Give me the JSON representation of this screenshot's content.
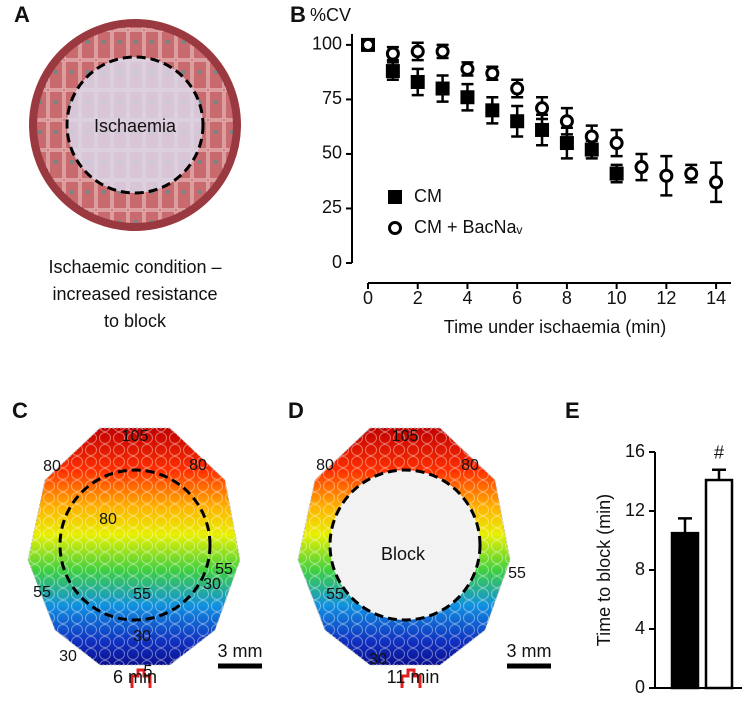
{
  "panel_labels": [
    "A",
    "B",
    "C",
    "D",
    "E"
  ],
  "diagram_a": {
    "label": "Ischaemia",
    "caption": [
      "Ischaemic condition –",
      "increased resistance",
      "to block"
    ]
  },
  "maps": [
    {
      "time": "6 min",
      "scale": "3 mm",
      "contours": [
        "105",
        "80",
        "80",
        "80",
        "55",
        "55",
        "55",
        "30",
        "30",
        "30",
        "5"
      ]
    },
    {
      "time": "11 min",
      "scale": "3 mm",
      "center": "Block",
      "contours": [
        "105",
        "80",
        "80",
        "55",
        "55",
        "30"
      ]
    }
  ],
  "chart_data": [
    {
      "type": "scatter",
      "ylabel": "%CV",
      "xlabel": "Time under ischaemia (min)",
      "xlim": [
        0,
        14.6
      ],
      "xticks": [
        0,
        2,
        4,
        6,
        8,
        10,
        12,
        14
      ],
      "ylim": [
        0,
        105
      ],
      "yticks": [
        0,
        25,
        50,
        75,
        100
      ],
      "series": [
        {
          "name": "CM",
          "color": "#000000",
          "marker": "square",
          "x": [
            0,
            1,
            2,
            3,
            4,
            5,
            6,
            7,
            8,
            9,
            10
          ],
          "values": [
            100,
            88,
            83,
            80,
            76,
            70,
            65,
            61,
            55,
            52,
            41
          ],
          "errors": [
            2,
            4,
            6,
            6,
            6,
            6,
            7,
            7,
            7,
            4,
            4
          ]
        },
        {
          "name": "CM + BacNaᵥ",
          "color": "#ffffff",
          "marker": "circle",
          "x": [
            0,
            1,
            2,
            3,
            4,
            5,
            6,
            7,
            8,
            9,
            10,
            11,
            12,
            13,
            14
          ],
          "values": [
            100,
            96,
            97,
            97,
            89,
            87,
            80,
            71,
            65,
            58,
            55,
            44,
            40,
            41,
            37
          ],
          "errors": [
            2,
            3,
            4,
            3,
            3,
            3,
            4,
            5,
            6,
            5,
            6,
            6,
            9,
            4,
            9
          ]
        }
      ]
    },
    {
      "type": "bar",
      "ylabel": "Time to block (min)",
      "categories": [
        null,
        null
      ],
      "values": [
        10.5,
        14.1
      ],
      "errors": [
        1,
        0.7
      ],
      "colors": [
        "#000000",
        "#ffffff"
      ],
      "ylim": [
        0,
        16
      ],
      "yticks": [
        0,
        4,
        8,
        12,
        16
      ],
      "annotation": "#"
    }
  ]
}
